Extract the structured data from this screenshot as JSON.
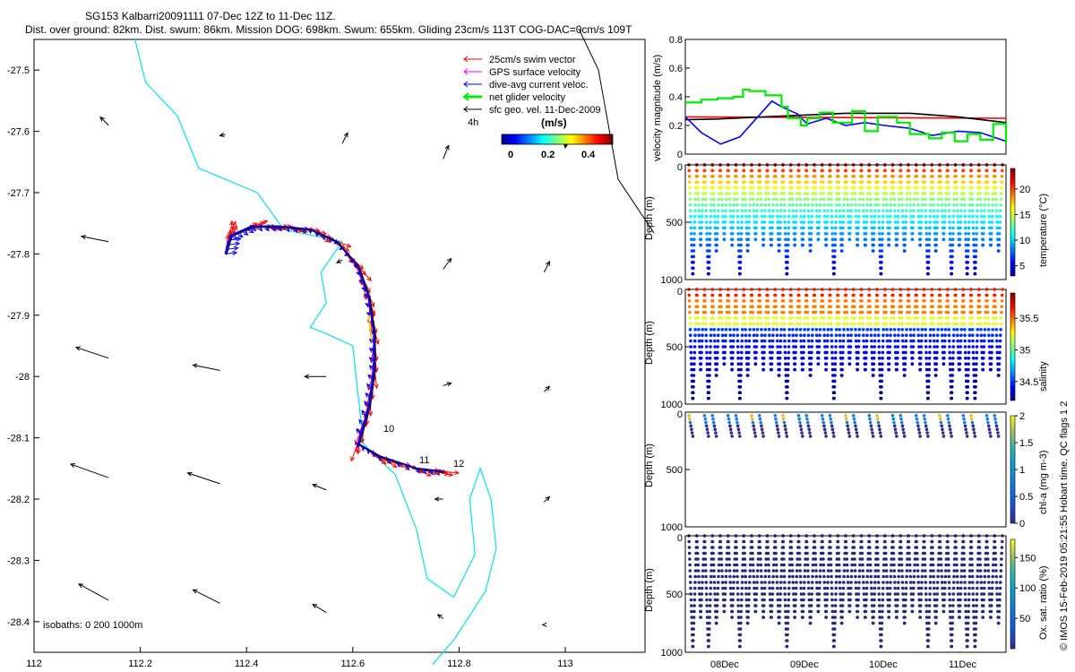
{
  "header": {
    "line1": "SG153 Kalbarri20091111 07-Dec 12Z to 11-Dec 11Z.",
    "line2": "Dist. over ground: 82km. Dist. swum: 86km. Mission DOG: 698km. Swum: 655km. Gliding 23cm/s 113T COG-DAC=0cm/s 109T"
  },
  "side_note": "© IMOS 15-Feb-2019 05:21:55 Hobart time. QC flags 1  2",
  "colors": {
    "swim": "#ff0000",
    "gps": "#ff00ff",
    "dac": "#0000ff",
    "net": "#00ee00",
    "geo": "#000000",
    "isobath": "#00e5ee",
    "red_line": "#ff0000",
    "black_line": "#000000"
  },
  "chart_data": [
    {
      "type": "map",
      "xlim": [
        112,
        113.15
      ],
      "ylim": [
        -28.45,
        -27.45
      ],
      "xticks": [
        112,
        112.2,
        112.4,
        112.6,
        112.8,
        113
      ],
      "xtick_labels": [
        "112",
        "112.2",
        "112.4",
        "112.6",
        "112.8",
        "113"
      ],
      "yticks": [
        -27.5,
        -27.6,
        -27.7,
        -27.8,
        -27.9,
        -28,
        -28.1,
        -28.2,
        -28.3,
        -28.4
      ],
      "ytick_labels": [
        "-27.5",
        "-27.6",
        "-27.7",
        "-27.8",
        "-27.9",
        "-28",
        "-28.1",
        "-28.2",
        "-28.3",
        "-28.4"
      ],
      "legend": [
        "25cm/s swim vector",
        "GPS surface velocity",
        "dive-avg current veloc.",
        "net glider velocity",
        "sfc geo. vel. 11-Dec-2009"
      ],
      "legend_note": "4h",
      "colorbar": {
        "title": "(m/s)",
        "ticks": [
          "0",
          "0.2",
          "0.4"
        ],
        "range": [
          0,
          0.5
        ]
      },
      "isobath_label": "isobaths: 0   200  1000m",
      "day_labels": [
        {
          "text": "10",
          "lon": 112.67,
          "lat": -28.093
        },
        {
          "text": "11",
          "lon": 112.73,
          "lat": -28.143
        },
        {
          "text": "12",
          "lon": 112.78,
          "lat": -28.15
        }
      ],
      "isobath": [
        [
          112.19,
          -27.45
        ],
        [
          112.21,
          -27.52
        ],
        [
          112.27,
          -27.575
        ],
        [
          112.31,
          -27.66
        ],
        [
          112.42,
          -27.7
        ],
        [
          112.47,
          -27.76
        ],
        [
          112.58,
          -27.78
        ],
        [
          112.54,
          -27.83
        ],
        [
          112.55,
          -27.88
        ],
        [
          112.52,
          -27.92
        ],
        [
          112.55,
          -27.93
        ],
        [
          112.6,
          -27.95
        ],
        [
          112.61,
          -28.03
        ],
        [
          112.62,
          -28.11
        ],
        [
          112.68,
          -28.16
        ],
        [
          112.72,
          -28.25
        ],
        [
          112.74,
          -28.33
        ],
        [
          112.79,
          -28.36
        ],
        [
          112.83,
          -28.29
        ],
        [
          112.82,
          -28.2
        ],
        [
          112.84,
          -28.15
        ],
        [
          112.86,
          -28.2
        ],
        [
          112.87,
          -28.28
        ],
        [
          112.85,
          -28.35
        ],
        [
          112.79,
          -28.43
        ],
        [
          112.75,
          -28.47
        ]
      ],
      "track": [
        [
          112.36,
          -27.8
        ],
        [
          112.37,
          -27.77
        ],
        [
          112.41,
          -27.755
        ],
        [
          112.46,
          -27.755
        ],
        [
          112.52,
          -27.76
        ],
        [
          112.57,
          -27.78
        ],
        [
          112.61,
          -27.82
        ],
        [
          112.63,
          -27.87
        ],
        [
          112.64,
          -27.93
        ],
        [
          112.64,
          -27.99
        ],
        [
          112.63,
          -28.05
        ],
        [
          112.61,
          -28.11
        ],
        [
          112.65,
          -28.13
        ],
        [
          112.72,
          -28.15
        ],
        [
          112.77,
          -28.155
        ]
      ],
      "geo_vectors": [
        {
          "lon": 112.14,
          "lat": -27.59,
          "u": -0.03,
          "v": 0.03
        },
        {
          "lon": 112.36,
          "lat": -27.605,
          "u": -0.02,
          "v": -0.005
        },
        {
          "lon": 112.58,
          "lat": -27.62,
          "u": 0.02,
          "v": 0.04
        },
        {
          "lon": 112.77,
          "lat": -27.645,
          "u": 0.02,
          "v": 0.05
        },
        {
          "lon": 112.14,
          "lat": -27.78,
          "u": -0.1,
          "v": 0.02
        },
        {
          "lon": 112.58,
          "lat": -27.81,
          "u": -0.02,
          "v": -0.01
        },
        {
          "lon": 112.77,
          "lat": -27.825,
          "u": 0.03,
          "v": 0.04
        },
        {
          "lon": 112.96,
          "lat": -27.83,
          "u": 0.02,
          "v": 0.04
        },
        {
          "lon": 112.14,
          "lat": -27.97,
          "u": -0.12,
          "v": 0.04
        },
        {
          "lon": 112.35,
          "lat": -27.99,
          "u": -0.1,
          "v": 0.02
        },
        {
          "lon": 112.55,
          "lat": -28.0,
          "u": -0.08,
          "v": 0.0
        },
        {
          "lon": 112.77,
          "lat": -28.015,
          "u": 0.03,
          "v": 0.01
        },
        {
          "lon": 112.96,
          "lat": -28.025,
          "u": 0.02,
          "v": 0.02
        },
        {
          "lon": 112.14,
          "lat": -28.165,
          "u": -0.14,
          "v": 0.05
        },
        {
          "lon": 112.35,
          "lat": -28.175,
          "u": -0.12,
          "v": 0.04
        },
        {
          "lon": 112.55,
          "lat": -28.185,
          "u": -0.05,
          "v": 0.02
        },
        {
          "lon": 112.77,
          "lat": -28.2,
          "u": -0.03,
          "v": 0.0
        },
        {
          "lon": 112.96,
          "lat": -28.205,
          "u": 0.02,
          "v": 0.02
        },
        {
          "lon": 112.14,
          "lat": -28.365,
          "u": -0.11,
          "v": 0.06
        },
        {
          "lon": 112.35,
          "lat": -28.37,
          "u": -0.1,
          "v": 0.05
        },
        {
          "lon": 112.55,
          "lat": -28.385,
          "u": -0.05,
          "v": 0.03
        },
        {
          "lon": 112.77,
          "lat": -28.395,
          "u": -0.02,
          "v": 0.015
        },
        {
          "lon": 112.96,
          "lat": -28.405,
          "u": -0.005,
          "v": 0.0
        }
      ]
    },
    {
      "type": "line",
      "ylabel": "velocity magnitude (m/s)",
      "ylim": [
        0,
        0.8
      ],
      "yticks": [
        "0",
        "0.2",
        "0.4",
        "0.6",
        "0.8"
      ],
      "series": [
        {
          "key": "red",
          "values": [
            [
              0,
              0.26
            ],
            [
              1,
              0.25
            ]
          ]
        },
        {
          "key": "black",
          "values": [
            [
              0,
              0.24
            ],
            [
              0.1,
              0.245
            ],
            [
              0.3,
              0.265
            ],
            [
              0.5,
              0.285
            ],
            [
              0.7,
              0.285
            ],
            [
              0.85,
              0.26
            ],
            [
              1,
              0.22
            ]
          ]
        },
        {
          "key": "blue",
          "values": [
            [
              0,
              0.26
            ],
            [
              0.05,
              0.15
            ],
            [
              0.11,
              0.07
            ],
            [
              0.17,
              0.12
            ],
            [
              0.27,
              0.37
            ],
            [
              0.3,
              0.33
            ],
            [
              0.35,
              0.28
            ],
            [
              0.38,
              0.21
            ],
            [
              0.44,
              0.25
            ],
            [
              0.5,
              0.2
            ],
            [
              0.56,
              0.22
            ],
            [
              0.62,
              0.2
            ],
            [
              0.7,
              0.18
            ],
            [
              0.77,
              0.13
            ],
            [
              0.85,
              0.16
            ],
            [
              0.92,
              0.15
            ],
            [
              1,
              0.09
            ]
          ]
        },
        {
          "key": "green",
          "values": [
            [
              0,
              0.36
            ],
            [
              0.05,
              0.38
            ],
            [
              0.1,
              0.39
            ],
            [
              0.15,
              0.4
            ],
            [
              0.18,
              0.45
            ],
            [
              0.2,
              0.44
            ],
            [
              0.25,
              0.41
            ],
            [
              0.3,
              0.33
            ],
            [
              0.32,
              0.25
            ],
            [
              0.36,
              0.2
            ],
            [
              0.38,
              0.25
            ],
            [
              0.42,
              0.29
            ],
            [
              0.46,
              0.22
            ],
            [
              0.52,
              0.3
            ],
            [
              0.56,
              0.16
            ],
            [
              0.6,
              0.26
            ],
            [
              0.66,
              0.22
            ],
            [
              0.7,
              0.14
            ],
            [
              0.76,
              0.11
            ],
            [
              0.8,
              0.15
            ],
            [
              0.84,
              0.09
            ],
            [
              0.88,
              0.14
            ],
            [
              0.92,
              0.1
            ],
            [
              0.96,
              0.21
            ],
            [
              1,
              0.08
            ]
          ]
        }
      ]
    },
    {
      "type": "scatter",
      "ylabel": "temperature (°C)",
      "ylabel_depth": "Depth (m)",
      "yticks": [
        "0",
        "500",
        "1000"
      ],
      "colorbar_ticks": [
        "5",
        "10",
        "15",
        "20"
      ],
      "colorbar_range": [
        3,
        24
      ],
      "colormap": "jet"
    },
    {
      "type": "scatter",
      "ylabel": "salinity",
      "ylabel_depth": "Depth (m)",
      "yticks": [
        "0",
        "500",
        "1000"
      ],
      "colorbar_ticks": [
        "34.5",
        "35",
        "35.5"
      ],
      "colorbar_range": [
        34.2,
        35.9
      ],
      "colormap": "jet"
    },
    {
      "type": "scatter",
      "ylabel": "chl-a (mg m-3)",
      "ylabel_depth": "Depth (m)",
      "yticks": [
        "0",
        "500",
        "1000"
      ],
      "colorbar_ticks": [
        "0",
        "0.5",
        "1",
        "1.5",
        "2"
      ],
      "colorbar_range": [
        0,
        2
      ],
      "colormap": "parula"
    },
    {
      "type": "scatter",
      "ylabel": "Ox. sat. ratio (%)",
      "ylabel_depth": "Depth (m)",
      "yticks": [
        "0",
        "500",
        "1000"
      ],
      "xticks": [
        "08Dec",
        "09Dec",
        "10Dec",
        "11Dec"
      ],
      "colorbar_ticks": [
        "50",
        "100",
        "150"
      ],
      "colorbar_range": [
        0,
        180
      ],
      "colormap": "parula"
    }
  ]
}
